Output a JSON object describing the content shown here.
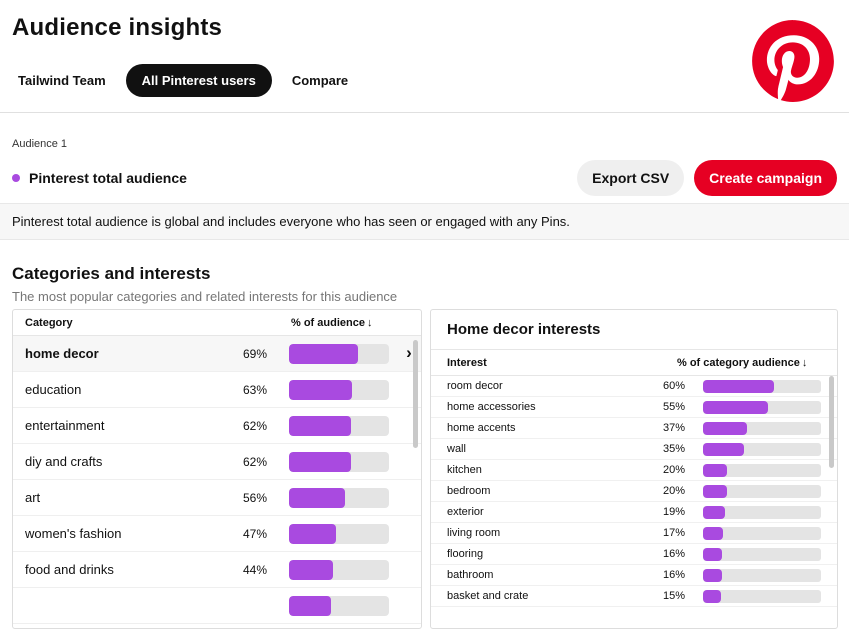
{
  "page": {
    "title": "Audience insights"
  },
  "tabs": [
    {
      "label": "Tailwind Team",
      "active": false
    },
    {
      "label": "All Pinterest users",
      "active": true
    },
    {
      "label": "Compare",
      "active": false
    }
  ],
  "audience": {
    "label": "Audience 1",
    "name": "Pinterest total audience",
    "export_label": "Export CSV",
    "create_label": "Create campaign",
    "description": "Pinterest total audience is global and includes everyone who has seen or engaged with any Pins."
  },
  "section": {
    "title": "Categories and interests",
    "subtitle": "The most popular categories and related interests for this audience"
  },
  "categories_table": {
    "columns": [
      "Category",
      "% of audience"
    ],
    "sort_icon": "↓",
    "rows": [
      {
        "label": "home decor",
        "value": "69%",
        "pct": 69,
        "selected": true
      },
      {
        "label": "education",
        "value": "63%",
        "pct": 63,
        "selected": false
      },
      {
        "label": "entertainment",
        "value": "62%",
        "pct": 62,
        "selected": false
      },
      {
        "label": "diy and crafts",
        "value": "62%",
        "pct": 62,
        "selected": false
      },
      {
        "label": "art",
        "value": "56%",
        "pct": 56,
        "selected": false
      },
      {
        "label": "women's fashion",
        "value": "47%",
        "pct": 47,
        "selected": false
      },
      {
        "label": "food and drinks",
        "value": "44%",
        "pct": 44,
        "selected": false
      },
      {
        "label": "",
        "value": "",
        "pct": 42,
        "selected": false
      }
    ]
  },
  "interests_panel": {
    "title": "Home decor interests",
    "columns": [
      "Interest",
      "% of category audience"
    ],
    "sort_icon": "↓",
    "rows": [
      {
        "label": "room decor",
        "value": "60%",
        "pct": 60
      },
      {
        "label": "home accessories",
        "value": "55%",
        "pct": 55
      },
      {
        "label": "home accents",
        "value": "37%",
        "pct": 37
      },
      {
        "label": "wall",
        "value": "35%",
        "pct": 35
      },
      {
        "label": "kitchen",
        "value": "20%",
        "pct": 20
      },
      {
        "label": "bedroom",
        "value": "20%",
        "pct": 20
      },
      {
        "label": "exterior",
        "value": "19%",
        "pct": 19
      },
      {
        "label": "living room",
        "value": "17%",
        "pct": 17
      },
      {
        "label": "flooring",
        "value": "16%",
        "pct": 16
      },
      {
        "label": "bathroom",
        "value": "16%",
        "pct": 16
      },
      {
        "label": "basket and crate",
        "value": "15%",
        "pct": 15
      }
    ]
  },
  "colors": {
    "bar_purple": "#a94ae0",
    "accent_red": "#e60023"
  }
}
